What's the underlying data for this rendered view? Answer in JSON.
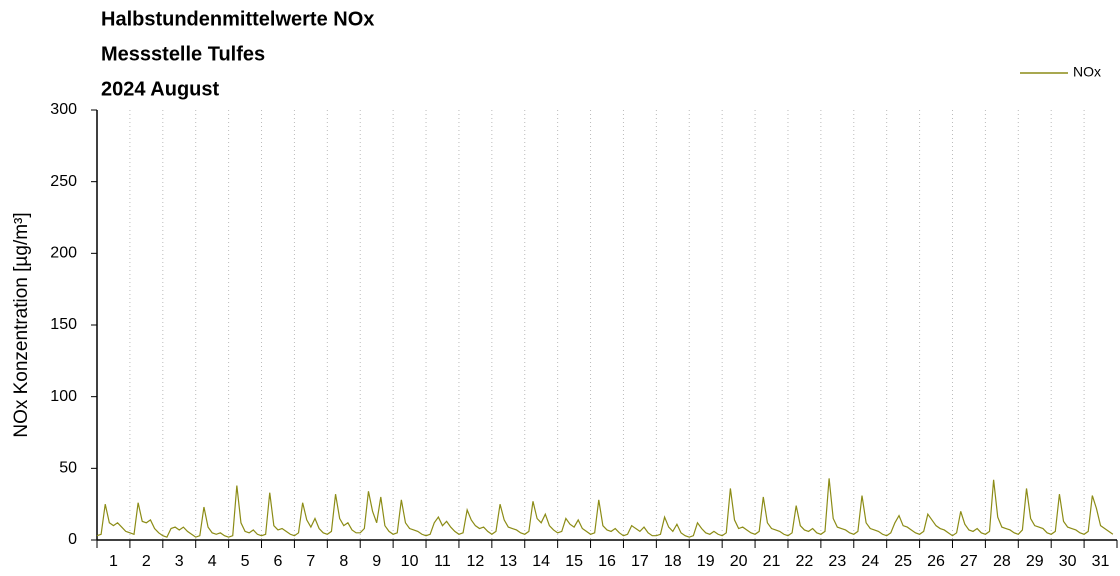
{
  "chart_data": {
    "type": "line",
    "title_lines": [
      "Halbstundenmittelwerte NOx",
      "Messstelle Tulfes",
      "2024 August"
    ],
    "ylabel": "NOx Konzentration [µg/m³]",
    "legend": "top-right",
    "grid": true,
    "ylim": [
      0,
      300
    ],
    "yticks": [
      0,
      50,
      100,
      150,
      200,
      250,
      300
    ],
    "xlim": [
      0.5,
      31.5
    ],
    "xticks": [
      1,
      2,
      3,
      4,
      5,
      6,
      7,
      8,
      9,
      10,
      11,
      12,
      13,
      14,
      15,
      16,
      17,
      18,
      19,
      20,
      21,
      22,
      23,
      24,
      25,
      26,
      27,
      28,
      29,
      30,
      31
    ],
    "x": [
      0.5,
      0.625,
      0.75,
      0.875,
      1,
      1.125,
      1.25,
      1.375,
      1.5,
      1.625,
      1.75,
      1.875,
      2,
      2.125,
      2.25,
      2.375,
      2.5,
      2.625,
      2.75,
      2.875,
      3,
      3.125,
      3.25,
      3.375,
      3.5,
      3.625,
      3.75,
      3.875,
      4,
      4.125,
      4.25,
      4.375,
      4.5,
      4.625,
      4.75,
      4.875,
      5,
      5.125,
      5.25,
      5.375,
      5.5,
      5.625,
      5.75,
      5.875,
      6,
      6.125,
      6.25,
      6.375,
      6.5,
      6.625,
      6.75,
      6.875,
      7,
      7.125,
      7.25,
      7.375,
      7.5,
      7.625,
      7.75,
      7.875,
      8,
      8.125,
      8.25,
      8.375,
      8.5,
      8.625,
      8.75,
      8.875,
      9,
      9.125,
      9.25,
      9.375,
      9.5,
      9.625,
      9.75,
      9.875,
      10,
      10.125,
      10.25,
      10.375,
      10.5,
      10.625,
      10.75,
      10.875,
      11,
      11.125,
      11.25,
      11.375,
      11.5,
      11.625,
      11.75,
      11.875,
      12,
      12.125,
      12.25,
      12.375,
      12.5,
      12.625,
      12.75,
      12.875,
      13,
      13.125,
      13.25,
      13.375,
      13.5,
      13.625,
      13.75,
      13.875,
      14,
      14.125,
      14.25,
      14.375,
      14.5,
      14.625,
      14.75,
      14.875,
      15,
      15.125,
      15.25,
      15.375,
      15.5,
      15.625,
      15.75,
      15.875,
      16,
      16.125,
      16.25,
      16.375,
      16.5,
      16.625,
      16.75,
      16.875,
      17,
      17.125,
      17.25,
      17.375,
      17.5,
      17.625,
      17.75,
      17.875,
      18,
      18.125,
      18.25,
      18.375,
      18.5,
      18.625,
      18.75,
      18.875,
      19,
      19.125,
      19.25,
      19.375,
      19.5,
      19.625,
      19.75,
      19.875,
      20,
      20.125,
      20.25,
      20.375,
      20.5,
      20.625,
      20.75,
      20.875,
      21,
      21.125,
      21.25,
      21.375,
      21.5,
      21.625,
      21.75,
      21.875,
      22,
      22.125,
      22.25,
      22.375,
      22.5,
      22.625,
      22.75,
      22.875,
      23,
      23.125,
      23.25,
      23.375,
      23.5,
      23.625,
      23.75,
      23.875,
      24,
      24.125,
      24.25,
      24.375,
      24.5,
      24.625,
      24.75,
      24.875,
      25,
      25.125,
      25.25,
      25.375,
      25.5,
      25.625,
      25.75,
      25.875,
      26,
      26.125,
      26.25,
      26.375,
      26.5,
      26.625,
      26.75,
      26.875,
      27,
      27.125,
      27.25,
      27.375,
      27.5,
      27.625,
      27.75,
      27.875,
      28,
      28.125,
      28.25,
      28.375,
      28.5,
      28.625,
      28.75,
      28.875,
      29,
      29.125,
      29.25,
      29.375,
      29.5,
      29.625,
      29.75,
      29.875,
      30,
      30.125,
      30.25,
      30.375,
      30.5,
      30.625,
      30.75,
      30.875,
      31,
      31.125,
      31.25,
      31.375
    ],
    "series": [
      {
        "name": "NOx",
        "color": "#8c8c16",
        "values": [
          3,
          4,
          25,
          12,
          10,
          12,
          9,
          6,
          5,
          4,
          26,
          13,
          12,
          14,
          8,
          5,
          3,
          2,
          8,
          9,
          7,
          9,
          6,
          4,
          2,
          3,
          23,
          9,
          5,
          4,
          5,
          3,
          2,
          3,
          38,
          12,
          6,
          5,
          7,
          4,
          3,
          4,
          33,
          10,
          7,
          8,
          6,
          4,
          3,
          5,
          26,
          14,
          9,
          15,
          8,
          5,
          4,
          6,
          32,
          15,
          10,
          12,
          7,
          5,
          5,
          8,
          34,
          20,
          12,
          30,
          10,
          6,
          4,
          5,
          28,
          12,
          8,
          7,
          6,
          4,
          3,
          4,
          12,
          16,
          10,
          13,
          9,
          6,
          4,
          5,
          21,
          14,
          10,
          8,
          9,
          6,
          4,
          6,
          25,
          14,
          9,
          8,
          7,
          5,
          4,
          6,
          27,
          15,
          12,
          18,
          10,
          7,
          5,
          6,
          15,
          11,
          9,
          14,
          8,
          6,
          4,
          5,
          28,
          10,
          7,
          6,
          8,
          5,
          3,
          4,
          10,
          8,
          6,
          9,
          5,
          3,
          3,
          4,
          16,
          9,
          6,
          11,
          5,
          3,
          2,
          3,
          12,
          8,
          5,
          4,
          6,
          4,
          3,
          5,
          36,
          14,
          8,
          9,
          7,
          5,
          4,
          6,
          30,
          12,
          8,
          7,
          6,
          4,
          3,
          5,
          24,
          10,
          7,
          6,
          8,
          5,
          4,
          6,
          43,
          15,
          9,
          8,
          7,
          5,
          4,
          6,
          31,
          12,
          8,
          7,
          6,
          4,
          3,
          5,
          12,
          17,
          10,
          9,
          7,
          5,
          4,
          6,
          18,
          14,
          10,
          8,
          7,
          5,
          3,
          5,
          20,
          11,
          7,
          6,
          8,
          5,
          4,
          6,
          42,
          16,
          9,
          8,
          7,
          5,
          4,
          7,
          36,
          15,
          10,
          9,
          8,
          5,
          4,
          6,
          32,
          13,
          9,
          8,
          7,
          5,
          4,
          6,
          31,
          22,
          10,
          8,
          6,
          4
        ]
      }
    ]
  }
}
